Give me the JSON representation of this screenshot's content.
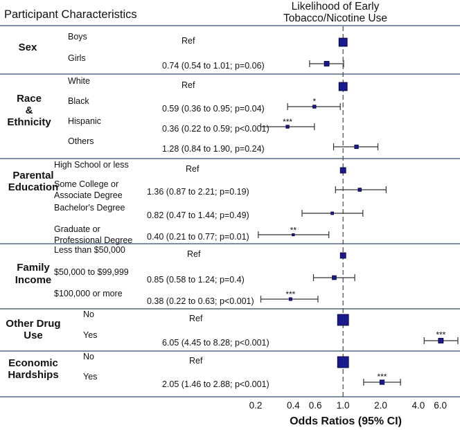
{
  "header": {
    "left": "Participant Characteristics",
    "right_line1": "Likelihood of Early",
    "right_line2": "Tobacco/Nicotine Use"
  },
  "chart_data": {
    "type": "forest",
    "xscale": "log",
    "xlim": [
      0.2,
      8.5
    ],
    "reference_line": 1.0,
    "xticks": [
      0.2,
      0.4,
      0.6,
      1.0,
      2.0,
      4.0,
      6.0
    ],
    "xticklabels": [
      "0.2",
      "0.4",
      "0.6",
      "1.0",
      "2.0",
      "4.0",
      "6.0"
    ],
    "xlabel": "Odds Ratios (95% CI)",
    "groups": [
      {
        "name": "Sex",
        "rows": [
          {
            "label": "Boys",
            "estimate_text": "Ref",
            "or": 1.0,
            "ci": null,
            "sig": ""
          },
          {
            "label": "Girls",
            "estimate_text": "0.74 (0.54 to 1.01; p=0.06)",
            "or": 0.74,
            "ci": [
              0.54,
              1.01
            ],
            "sig": ""
          }
        ]
      },
      {
        "name": "Race & Ethnicity",
        "rows": [
          {
            "label": "White",
            "estimate_text": "Ref",
            "or": 1.0,
            "ci": null,
            "sig": ""
          },
          {
            "label": "Black",
            "estimate_text": "0.59 (0.36 to 0.95; p=0.04)",
            "or": 0.59,
            "ci": [
              0.36,
              0.95
            ],
            "sig": "*"
          },
          {
            "label": "Hispanic",
            "estimate_text": "0.36 (0.22 to 0.59; p<0.001)",
            "or": 0.36,
            "ci": [
              0.22,
              0.59
            ],
            "sig": "***"
          },
          {
            "label": "Others",
            "estimate_text": "1.28 (0.84 to 1.90, p=0.24)",
            "or": 1.28,
            "ci": [
              0.84,
              1.9
            ],
            "sig": ""
          }
        ]
      },
      {
        "name": "Parental Education",
        "rows": [
          {
            "label": "High School or less",
            "estimate_text": "Ref",
            "or": 1.0,
            "ci": null,
            "sig": ""
          },
          {
            "label": "Some College or Associate Degree",
            "estimate_text": "1.36 (0.87 to 2.21; p=0.19)",
            "or": 1.36,
            "ci": [
              0.87,
              2.21
            ],
            "sig": ""
          },
          {
            "label": "Bachelor's Degree",
            "estimate_text": "0.82 (0.47 to 1.44; p=0.49)",
            "or": 0.82,
            "ci": [
              0.47,
              1.44
            ],
            "sig": ""
          },
          {
            "label": "Graduate or Professional Degree",
            "estimate_text": "0.40 (0.21 to 0.77; p=0.01)",
            "or": 0.4,
            "ci": [
              0.21,
              0.77
            ],
            "sig": "**"
          }
        ]
      },
      {
        "name": "Family Income",
        "rows": [
          {
            "label": "Less than $50,000",
            "estimate_text": "Ref",
            "or": 1.0,
            "ci": null,
            "sig": ""
          },
          {
            "label": "$50,000 to $99,999",
            "estimate_text": "0.85 (0.58 to 1.24; p=0.4)",
            "or": 0.85,
            "ci": [
              0.58,
              1.24
            ],
            "sig": ""
          },
          {
            "label": "$100,000 or more",
            "estimate_text": "0.38 (0.22 to 0.63; p<0.001)",
            "or": 0.38,
            "ci": [
              0.22,
              0.63
            ],
            "sig": "***"
          }
        ]
      },
      {
        "name": "Other Drug Use",
        "rows": [
          {
            "label": "No",
            "estimate_text": "Ref",
            "or": 1.0,
            "ci": null,
            "sig": ""
          },
          {
            "label": "Yes",
            "estimate_text": "6.05 (4.45 to 8.28; p<0.001)",
            "or": 6.05,
            "ci": [
              4.45,
              8.28
            ],
            "sig": "***"
          }
        ]
      },
      {
        "name": "Economic Hardships",
        "rows": [
          {
            "label": "No",
            "estimate_text": "Ref",
            "or": 1.0,
            "ci": null,
            "sig": ""
          },
          {
            "label": "Yes",
            "estimate_text": "2.05 (1.46 to 2.88; p<0.001)",
            "or": 2.05,
            "ci": [
              1.46,
              2.88
            ],
            "sig": "***"
          }
        ]
      }
    ],
    "colors": {
      "marker": "#1a1a8c",
      "marker_edge": "#000033",
      "ci_line": "#333333",
      "separator": "#2f4a66",
      "ref_line": "#444444"
    }
  }
}
